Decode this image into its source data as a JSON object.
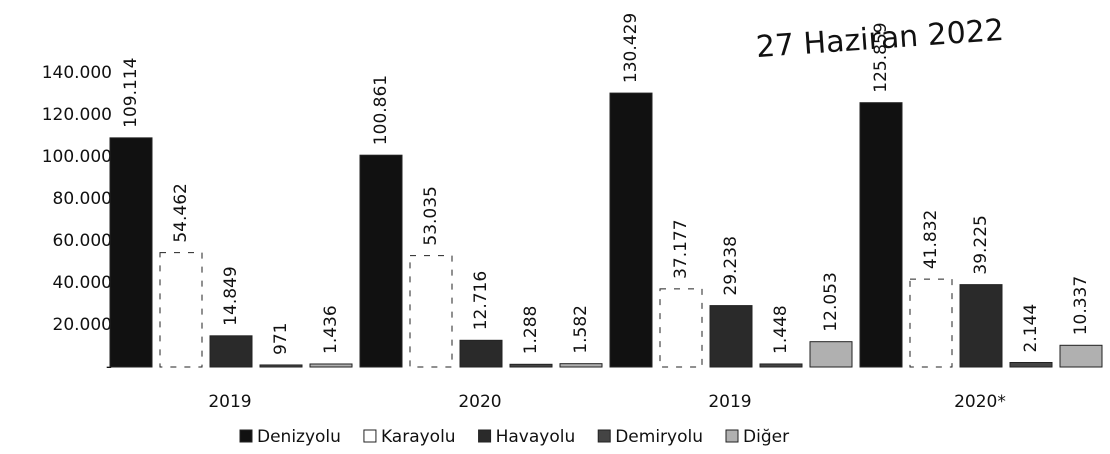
{
  "chart_data": {
    "type": "bar",
    "annotation": "27 Haziran 2022",
    "categories": [
      "2019",
      "2020",
      "2019",
      "2020*"
    ],
    "series": [
      {
        "name": "Denizyolu",
        "color": "#111111",
        "values": [
          109114,
          100861,
          130429,
          125859
        ],
        "value_labels": [
          "109.114",
          "100.861",
          "130.429",
          "125.859"
        ]
      },
      {
        "name": "Karayolu",
        "color": "#ffffff",
        "values": [
          54462,
          53035,
          37177,
          41832
        ],
        "value_labels": [
          "54.462",
          "53.035",
          "37.177",
          "41.832"
        ]
      },
      {
        "name": "Havayolu",
        "color": "#2a2a2a",
        "values": [
          14849,
          12716,
          29238,
          39225
        ],
        "value_labels": [
          "14.849",
          "12.716",
          "29.238",
          "39.225"
        ]
      },
      {
        "name": "Demiryolu",
        "color": "#444444",
        "values": [
          971,
          1288,
          1448,
          2144
        ],
        "value_labels": [
          "971",
          "1.288",
          "1.448",
          "2.144"
        ]
      },
      {
        "name": "Diğer",
        "color": "#b0b0b0",
        "values": [
          1436,
          1582,
          12053,
          10337
        ],
        "value_labels": [
          "1.436",
          "1.582",
          "12.053",
          "10.337"
        ]
      }
    ],
    "ylim": [
      0,
      150000
    ],
    "yticks": [
      {
        "value": 0,
        "label": "-"
      },
      {
        "value": 20000,
        "label": "20.000"
      },
      {
        "value": 40000,
        "label": "40.000"
      },
      {
        "value": 60000,
        "label": "60.000"
      },
      {
        "value": 80000,
        "label": "80.000"
      },
      {
        "value": 100000,
        "label": "100.000"
      },
      {
        "value": 120000,
        "label": "120.000"
      },
      {
        "value": 140000,
        "label": "140.000"
      }
    ],
    "legend": "bottom"
  }
}
